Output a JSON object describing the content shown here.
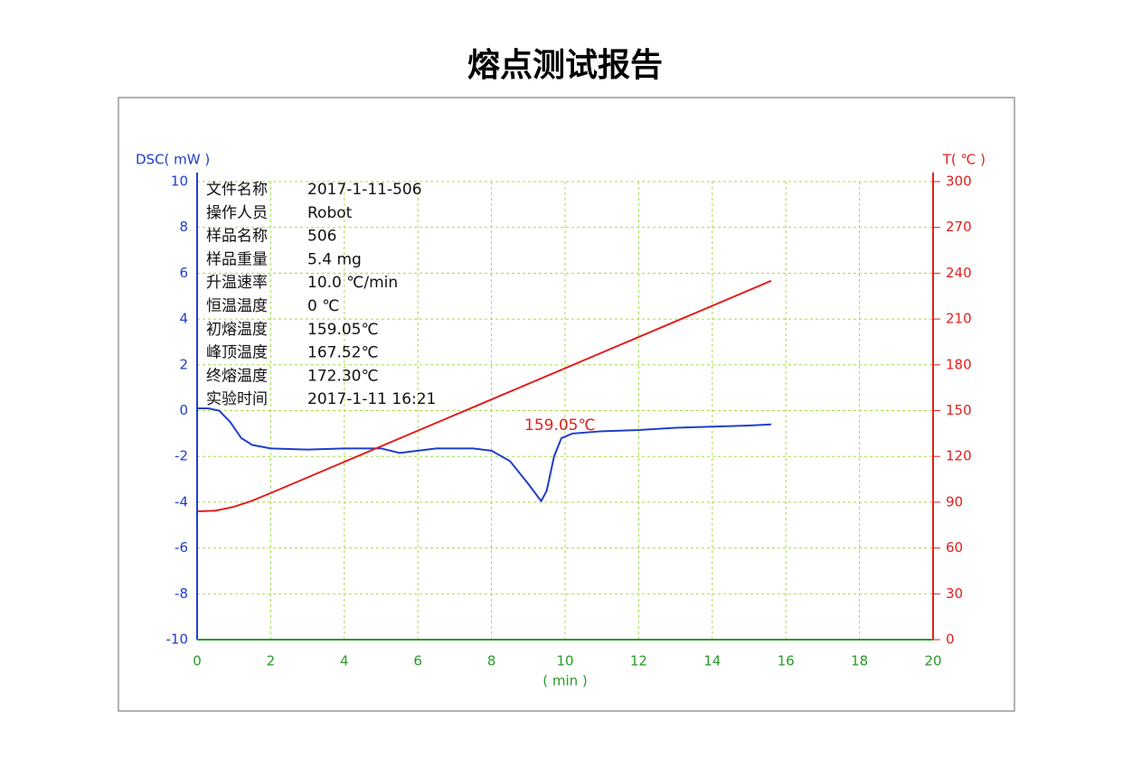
{
  "chart_data": {
    "type": "line",
    "title": "熔点测试报告",
    "ylabel": "DSC( mW )",
    "y2label": "T( ℃ )",
    "xlabel": "( min )",
    "xlim": [
      0,
      20
    ],
    "xticks": [
      0,
      2,
      4,
      6,
      8,
      10,
      12,
      14,
      16,
      18,
      20
    ],
    "ylim": [
      -10,
      10
    ],
    "yticks": [
      -10,
      -8,
      -6,
      -4,
      -2,
      0,
      2,
      4,
      6,
      8,
      10
    ],
    "y2lim": [
      0,
      300
    ],
    "y2ticks": [
      0,
      30,
      60,
      90,
      120,
      150,
      180,
      210,
      240,
      270,
      300
    ],
    "grid": true,
    "info_table": [
      [
        "文件名称",
        "2017-1-11-506"
      ],
      [
        "操作人员",
        "Robot"
      ],
      [
        "样品名称",
        "506"
      ],
      [
        "样品重量",
        "5.4 mg"
      ],
      [
        "升温速率",
        "10.0 ℃/min"
      ],
      [
        "恒温温度",
        "0 ℃"
      ],
      [
        "初熔温度",
        "159.05℃"
      ],
      [
        "峰顶温度",
        "167.52℃"
      ],
      [
        "终熔温度",
        "172.30℃"
      ],
      [
        "实验时间",
        "2017-1-11 16:21"
      ]
    ],
    "annotation": "159.05℃",
    "series": [
      {
        "name": "DSC",
        "color": "#1f3fc8",
        "x": [
          0,
          0.3,
          0.6,
          0.9,
          1.2,
          1.5,
          2,
          3,
          4,
          5,
          5.5,
          6,
          6.5,
          7,
          7.5,
          8,
          8.5,
          9,
          9.35,
          9.5,
          9.7,
          9.9,
          10.2,
          11,
          12,
          13,
          14,
          15,
          15.6
        ],
        "values": [
          0.1,
          0.1,
          0,
          -0.5,
          -1.2,
          -1.5,
          -1.65,
          -1.7,
          -1.65,
          -1.65,
          -1.85,
          -1.75,
          -1.65,
          -1.65,
          -1.65,
          -1.75,
          -2.2,
          -3.2,
          -3.95,
          -3.5,
          -2,
          -1.2,
          -1.0,
          -0.9,
          -0.85,
          -0.75,
          -0.7,
          -0.65,
          -0.6
        ]
      },
      {
        "name": "T",
        "color": "#e0201e",
        "axis": "y2",
        "x": [
          0,
          0.5,
          1,
          1.5,
          2,
          15.6
        ],
        "values": [
          84,
          84.5,
          87,
          91,
          96,
          235
        ]
      }
    ]
  }
}
